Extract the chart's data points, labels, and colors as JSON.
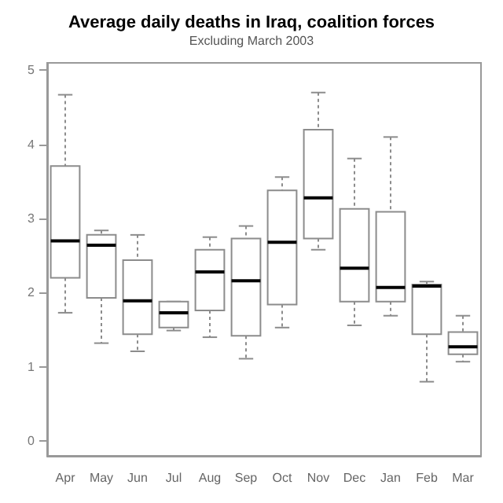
{
  "chart_data": {
    "type": "box",
    "title": "Average daily deaths in Iraq, coalition forces",
    "subtitle": "Excluding March 2003",
    "categories": [
      "Apr",
      "May",
      "Jun",
      "Jul",
      "Aug",
      "Sep",
      "Oct",
      "Nov",
      "Dec",
      "Jan",
      "Feb",
      "Mar"
    ],
    "boxes": [
      {
        "low": 1.73,
        "q1": 2.2,
        "median": 2.7,
        "q3": 3.71,
        "high": 4.67
      },
      {
        "low": 1.32,
        "q1": 1.93,
        "median": 2.64,
        "q3": 2.78,
        "high": 2.84
      },
      {
        "low": 1.21,
        "q1": 1.44,
        "median": 1.89,
        "q3": 2.44,
        "high": 2.78
      },
      {
        "low": 1.49,
        "q1": 1.53,
        "median": 1.73,
        "q3": 1.88,
        "high": 1.88
      },
      {
        "low": 1.4,
        "q1": 1.76,
        "median": 2.28,
        "q3": 2.58,
        "high": 2.75
      },
      {
        "low": 1.11,
        "q1": 1.42,
        "median": 2.16,
        "q3": 2.73,
        "high": 2.9
      },
      {
        "low": 1.53,
        "q1": 1.84,
        "median": 2.68,
        "q3": 3.38,
        "high": 3.56
      },
      {
        "low": 2.58,
        "q1": 2.73,
        "median": 3.28,
        "q3": 4.2,
        "high": 4.7
      },
      {
        "low": 1.56,
        "q1": 1.88,
        "median": 2.33,
        "q3": 3.13,
        "high": 3.81
      },
      {
        "low": 1.69,
        "q1": 1.88,
        "median": 2.07,
        "q3": 3.09,
        "high": 4.1
      },
      {
        "low": 0.8,
        "q1": 1.44,
        "median": 2.09,
        "q3": 2.11,
        "high": 2.15
      },
      {
        "low": 1.07,
        "q1": 1.17,
        "median": 1.27,
        "q3": 1.47,
        "high": 1.69
      }
    ],
    "color": "#8c8c8c",
    "ylim": [
      -0.2,
      5.1
    ],
    "yticks": [
      0,
      1,
      2,
      3,
      4,
      5
    ]
  }
}
